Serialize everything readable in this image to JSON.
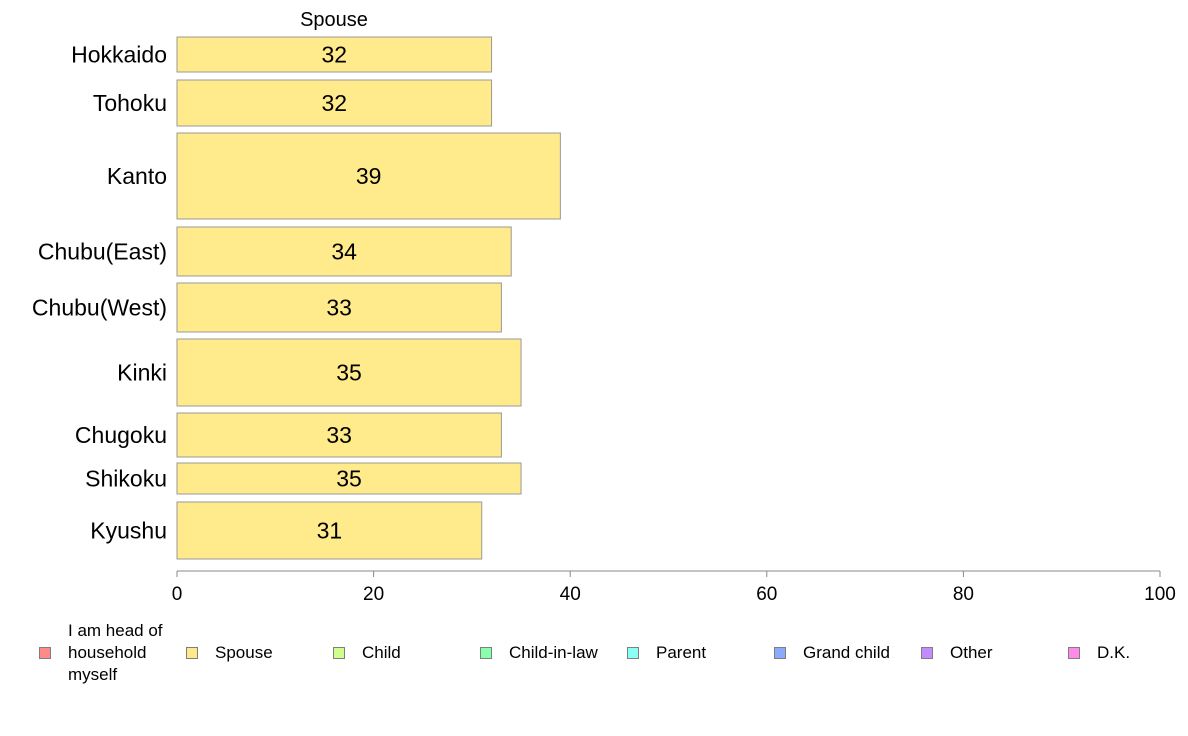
{
  "chart_data": {
    "type": "bar",
    "orientation": "horizontal",
    "title": "Spouse",
    "categories": [
      "Hokkaido",
      "Tohoku",
      "Kanto",
      "Chubu(East)",
      "Chubu(West)",
      "Kinki",
      "Chugoku",
      "Shikoku",
      "Kyushu"
    ],
    "series": [
      {
        "name": "Spouse",
        "values": [
          32,
          32,
          39,
          34,
          33,
          35,
          33,
          35,
          31
        ]
      }
    ],
    "data_labels": [
      "32",
      "32",
      "39",
      "34",
      "33",
      "35",
      "33",
      "35",
      "31"
    ],
    "xlim": [
      0,
      100
    ],
    "xticks": [
      0,
      20,
      40,
      60,
      80,
      100
    ],
    "xlabel": "",
    "ylabel": "",
    "grid": false,
    "legend_position": "bottom",
    "legend": [
      {
        "label": "I am head of household myself",
        "color": "#ff8a8a"
      },
      {
        "label": "Spouse",
        "color": "#ffe98a"
      },
      {
        "label": "Child",
        "color": "#cdff8a"
      },
      {
        "label": "Child-in-law",
        "color": "#8affab"
      },
      {
        "label": "Parent",
        "color": "#8afff5"
      },
      {
        "label": "Grand child",
        "color": "#8aaaff"
      },
      {
        "label": "Other",
        "color": "#c48aff"
      },
      {
        "label": "D.K.",
        "color": "#ff8ae8"
      }
    ],
    "bar_color": "#ffeb8c",
    "bar_border_color": "#999999"
  }
}
